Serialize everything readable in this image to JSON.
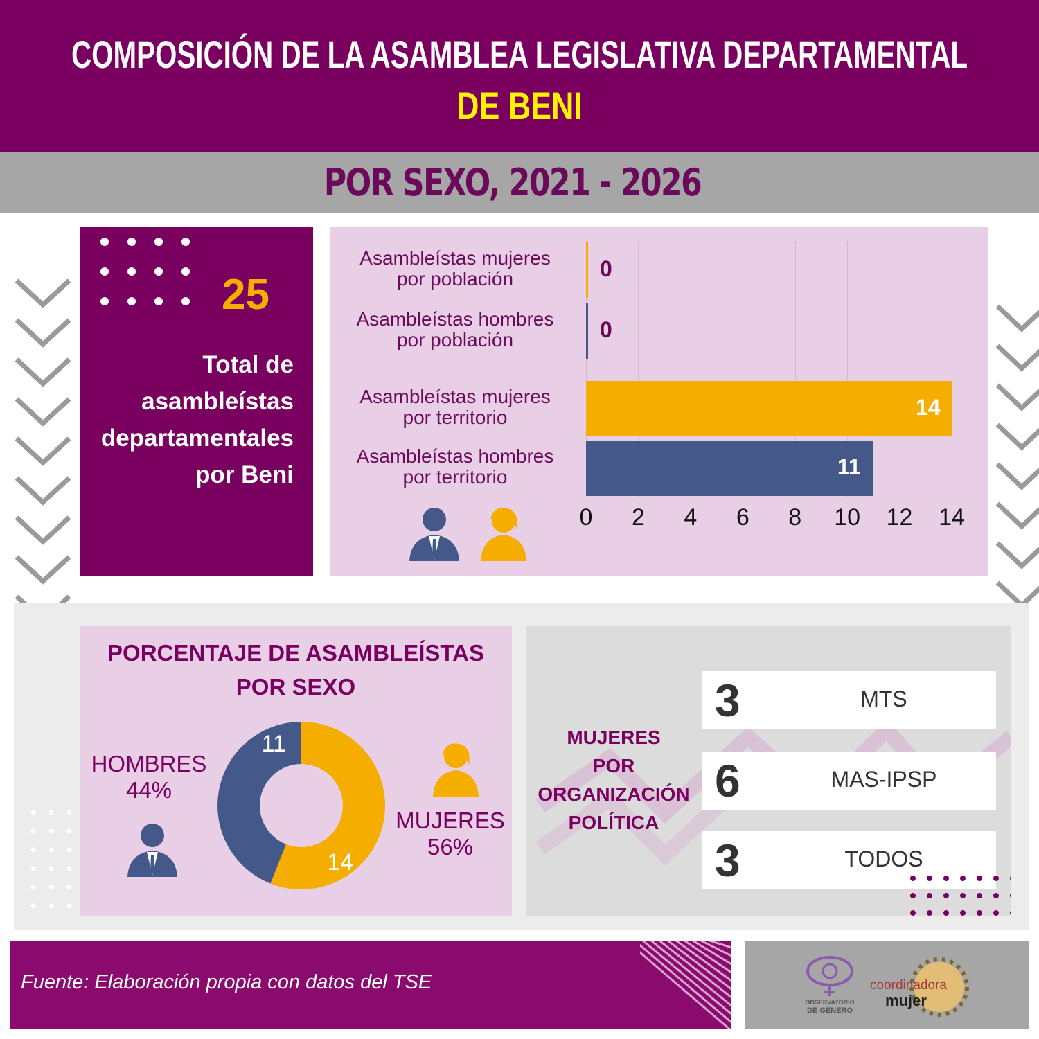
{
  "header": {
    "title_line1": "COMPOSICIÓN DE LA ASAMBLEA LEGISLATIVA DEPARTAMENTAL",
    "title_line2": "DE BENI",
    "subtitle": "POR SEXO, 2021 - 2026"
  },
  "total": {
    "value": "25",
    "label_lines": [
      "Total de",
      "asambleístas",
      "departamentales",
      "por Beni"
    ]
  },
  "colors": {
    "purple": "#7a0060",
    "women": "#f5ad00",
    "men": "#44598a",
    "lilac": "#e8cfe6"
  },
  "chart_data": [
    {
      "type": "bar",
      "orientation": "horizontal",
      "categories": [
        "Asambleístas mujeres por población",
        "Asambleístas hombres por población",
        "Asambleístas mujeres por territorio",
        "Asambleístas hombres por territorio"
      ],
      "category_lines": [
        [
          "Asambleístas mujeres",
          "por población"
        ],
        [
          "Asambleístas hombres",
          "por población"
        ],
        [
          "Asambleístas mujeres",
          "por territorio"
        ],
        [
          "Asambleístas hombres",
          "por territorio"
        ]
      ],
      "values": [
        0,
        0,
        14,
        11
      ],
      "value_labels": [
        "0",
        "0",
        "14",
        "11"
      ],
      "bar_colors": [
        "#f5ad00",
        "#44598a",
        "#f5ad00",
        "#44598a"
      ],
      "xlim": [
        0,
        14
      ],
      "xticks": [
        "0",
        "2",
        "4",
        "6",
        "8",
        "10",
        "12",
        "14"
      ],
      "grid": true
    },
    {
      "type": "pie",
      "donut": true,
      "title_lines": [
        "PORCENTAJE DE ASAMBLEÍSTAS",
        "POR SEXO"
      ],
      "slices": [
        {
          "name": "MUJERES",
          "value": 14,
          "label": "14",
          "percent": "56%",
          "color": "#f5ad00"
        },
        {
          "name": "HOMBRES",
          "value": 11,
          "label": "11",
          "percent": "44%",
          "color": "#44598a"
        }
      ]
    }
  ],
  "org": {
    "title_lines": [
      "MUJERES",
      "POR",
      "ORGANIZACIÓN",
      "POLÍTICA"
    ],
    "items": [
      {
        "count": "3",
        "party": "MTS"
      },
      {
        "count": "6",
        "party": "MAS-IPSP"
      },
      {
        "count": "3",
        "party": "TODOS"
      }
    ]
  },
  "footer": {
    "source": "Fuente: Elaboración propia con datos del TSE",
    "logos": [
      "OBSERVATORIO DE GÉNERO",
      "coordinadora de la mujer"
    ]
  }
}
